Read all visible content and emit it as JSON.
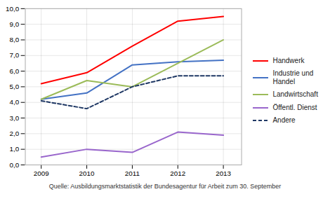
{
  "chart_data": {
    "type": "line",
    "x": [
      2009,
      2010,
      2011,
      2012,
      2013
    ],
    "series": [
      {
        "name": "Handwerk",
        "color": "#FF0000",
        "line_style": "solid",
        "values": [
          5.2,
          5.9,
          7.6,
          9.2,
          9.5
        ]
      },
      {
        "name": "Industrie und\nHandel",
        "color": "#4472C4",
        "line_style": "solid",
        "values": [
          4.2,
          4.6,
          6.4,
          6.6,
          6.7
        ]
      },
      {
        "name": "Landwirtschaft",
        "color": "#9BBB59",
        "line_style": "solid",
        "values": [
          4.2,
          5.4,
          5.0,
          6.5,
          8.0
        ]
      },
      {
        "name": "Öffentl. Dienst",
        "color": "#9966CC",
        "line_style": "solid",
        "values": [
          0.5,
          1.0,
          0.8,
          2.1,
          1.9
        ]
      },
      {
        "name": "Andere",
        "color": "#1F3864",
        "line_style": "dashed",
        "values": [
          4.1,
          3.6,
          5.0,
          5.7,
          5.7
        ]
      }
    ],
    "xlim": [
      2008.65,
      2013.4
    ],
    "xticks": [
      2009,
      2010,
      2011,
      2012,
      2013
    ],
    "ylim": [
      0.0,
      10.0
    ],
    "yticks": [
      {
        "value": 0.0,
        "label": "0,0"
      },
      {
        "value": 1.0,
        "label": "1,0"
      },
      {
        "value": 2.0,
        "label": "2,0"
      },
      {
        "value": 3.0,
        "label": "3,0"
      },
      {
        "value": 4.0,
        "label": "4,0"
      },
      {
        "value": 5.0,
        "label": "5,0"
      },
      {
        "value": 6.0,
        "label": "6,0"
      },
      {
        "value": 7.0,
        "label": "7,0"
      },
      {
        "value": 8.0,
        "label": "8,0"
      },
      {
        "value": 9.0,
        "label": "9,0"
      },
      {
        "value": 10.0,
        "label": "10,0"
      }
    ],
    "grid": true,
    "legend": "right",
    "caption": "Quelle: Ausbildungsmarktstatistik der Bundesagentur für Arbeit zum 30. September"
  }
}
